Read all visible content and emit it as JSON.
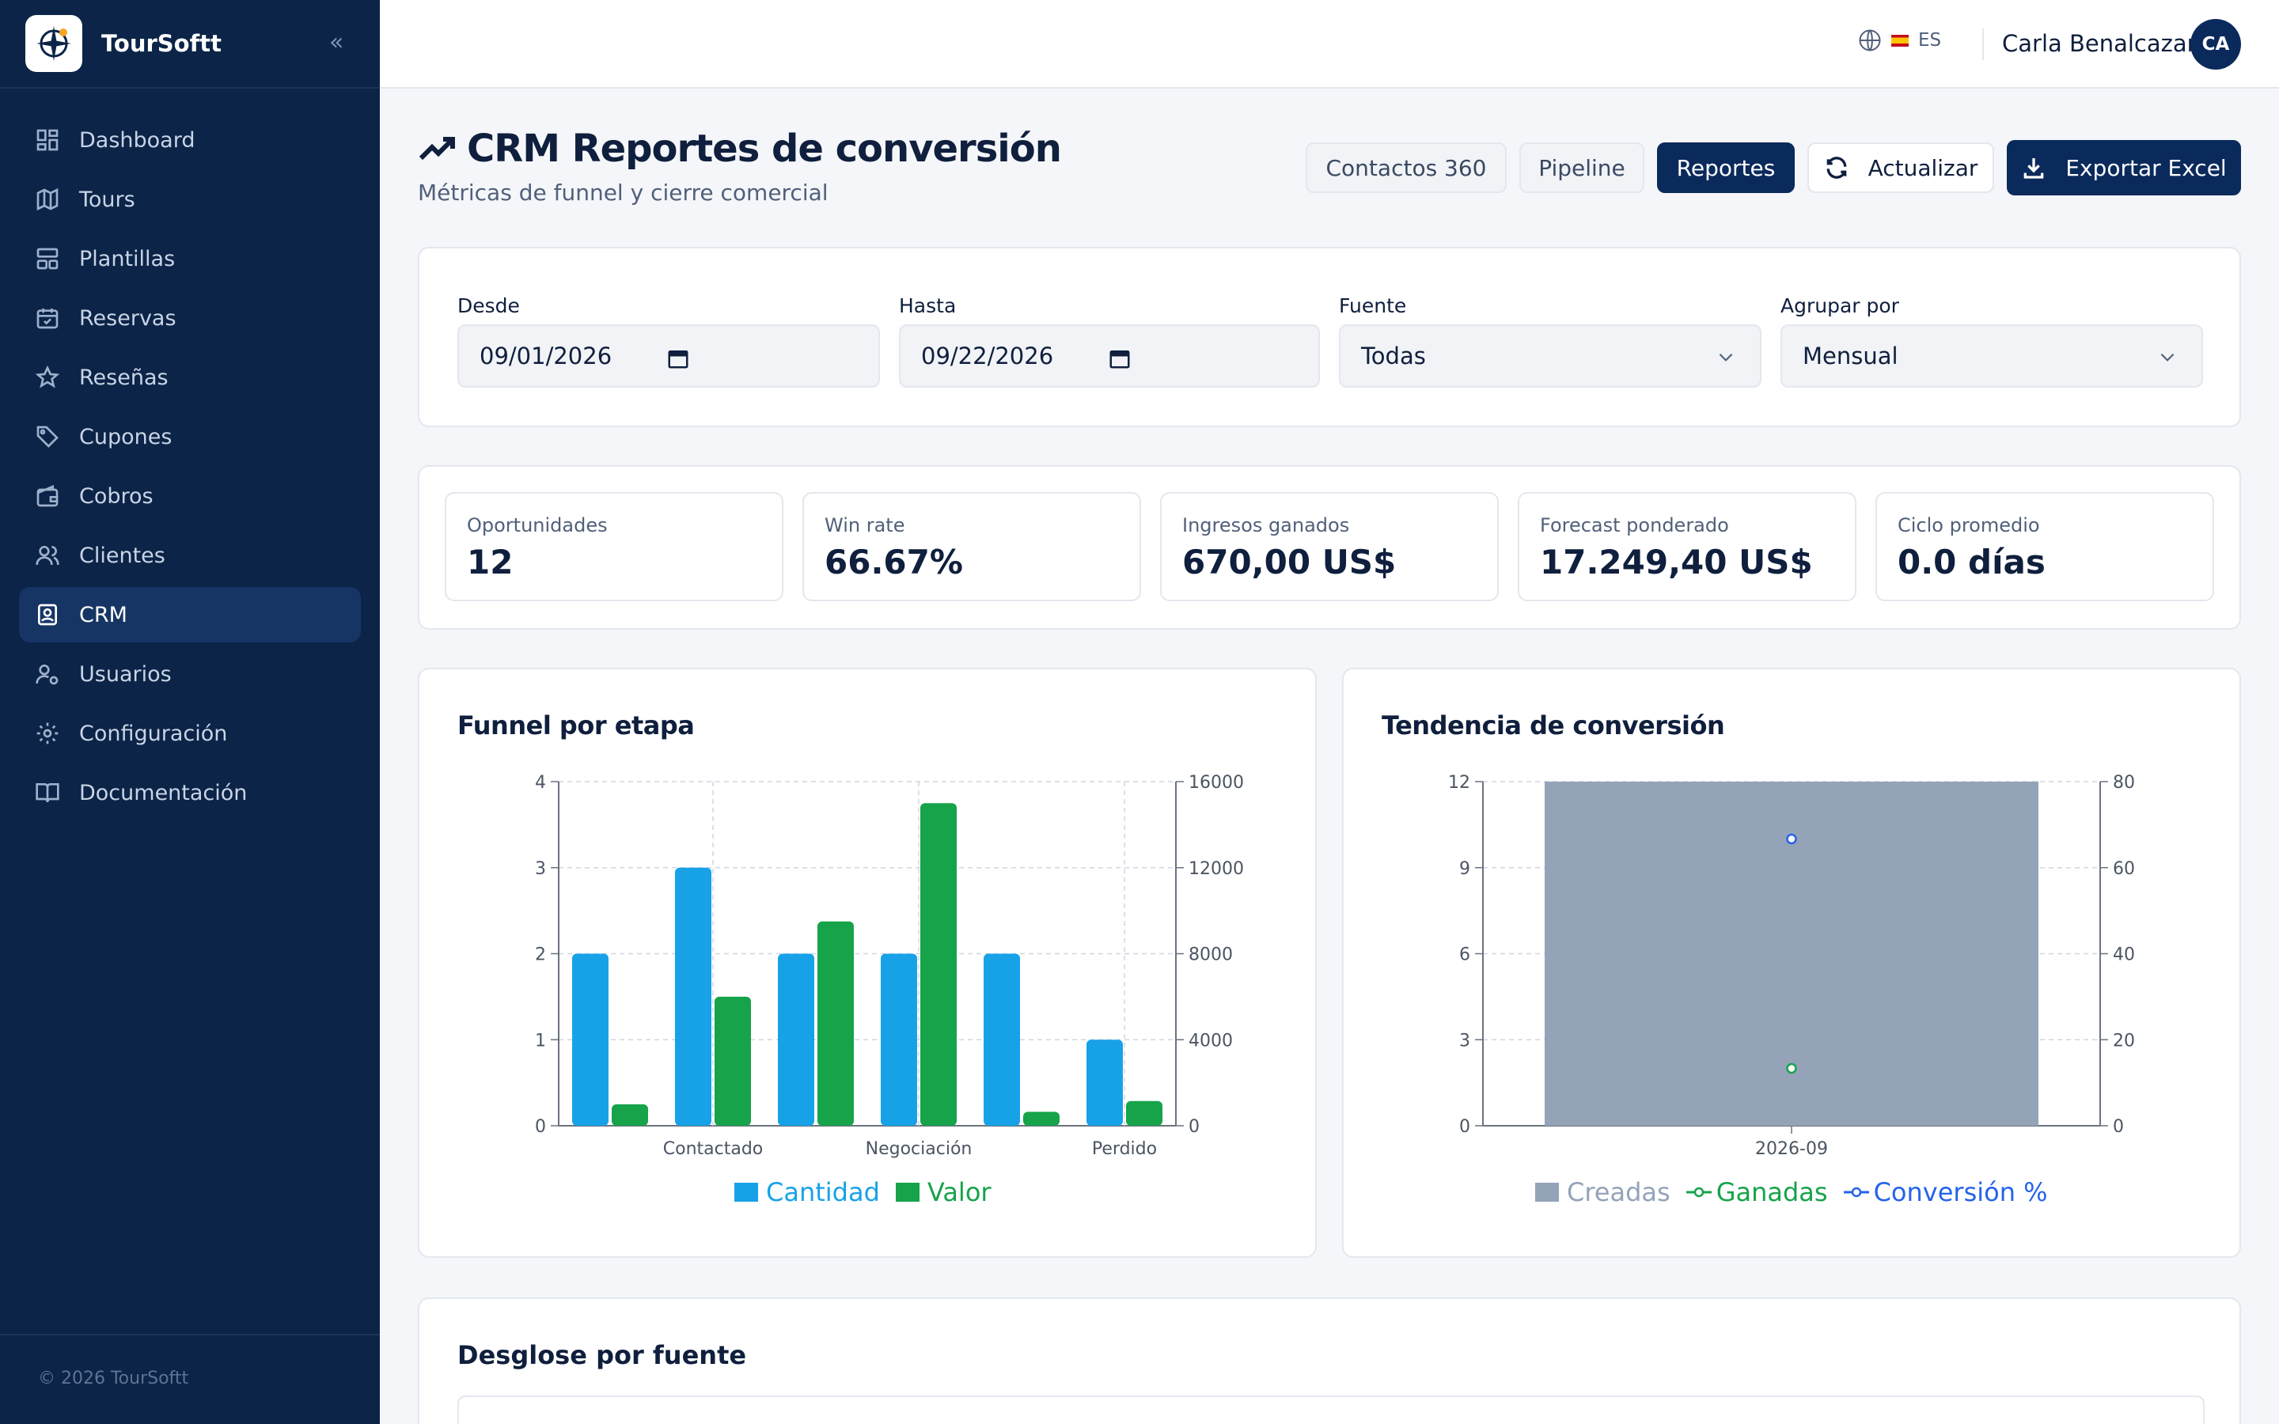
{
  "brand": {
    "name": "TourSoftt"
  },
  "sidebar": {
    "items": [
      {
        "label": "Dashboard",
        "icon": "dashboard-icon"
      },
      {
        "label": "Tours",
        "icon": "map-icon"
      },
      {
        "label": "Plantillas",
        "icon": "template-icon"
      },
      {
        "label": "Reservas",
        "icon": "calendar-icon"
      },
      {
        "label": "Reseñas",
        "icon": "star-icon"
      },
      {
        "label": "Cupones",
        "icon": "tag-icon"
      },
      {
        "label": "Cobros",
        "icon": "wallet-icon"
      },
      {
        "label": "Clientes",
        "icon": "users-icon"
      },
      {
        "label": "CRM",
        "icon": "contact-icon",
        "active": true
      },
      {
        "label": "Usuarios",
        "icon": "user-gear-icon"
      },
      {
        "label": "Configuración",
        "icon": "gear-icon"
      },
      {
        "label": "Documentación",
        "icon": "book-icon"
      }
    ],
    "footer": "© 2026 TourSoftt"
  },
  "topbar": {
    "language": "ES",
    "user_name": "Carla Benalcazar",
    "user_initials": "CA"
  },
  "header": {
    "title": "CRM Reportes de conversión",
    "subtitle": "Métricas de funnel y cierre comercial",
    "tabs": [
      "Contactos 360",
      "Pipeline",
      "Reportes"
    ],
    "active_tab": "Reportes",
    "refresh_label": "Actualizar",
    "export_label": "Exportar Excel"
  },
  "filters": {
    "from": {
      "label": "Desde",
      "value": "09/01/2026"
    },
    "to": {
      "label": "Hasta",
      "value": "09/22/2026"
    },
    "source": {
      "label": "Fuente",
      "value": "Todas"
    },
    "group_by": {
      "label": "Agrupar por",
      "value": "Mensual"
    }
  },
  "kpis": [
    {
      "label": "Oportunidades",
      "value": "12"
    },
    {
      "label": "Win rate",
      "value": "66.67%"
    },
    {
      "label": "Ingresos ganados",
      "value": "670,00 US$"
    },
    {
      "label": "Forecast ponderado",
      "value": "17.249,40 US$"
    },
    {
      "label": "Ciclo promedio",
      "value": "0.0 días"
    }
  ],
  "funnel": {
    "title": "Funnel por etapa",
    "legend": [
      "Cantidad",
      "Valor"
    ]
  },
  "trend": {
    "title": "Tendencia de conversión",
    "legend": [
      "Creadas",
      "Ganadas",
      "Conversión %"
    ]
  },
  "breakdown": {
    "title": "Desglose por fuente"
  },
  "colors": {
    "sidebar": "#0b2447",
    "primary": "#0b2a5c",
    "blue": "#17a2e8",
    "green": "#16a34a",
    "gray": "#94a3b8",
    "conv": "#2563eb"
  },
  "chart_data": [
    {
      "type": "bar",
      "title": "Funnel por etapa",
      "categories": [
        "",
        "Contactado",
        "",
        "Negociación",
        "",
        "Perdido"
      ],
      "series": [
        {
          "name": "Cantidad",
          "axis": "left",
          "values": [
            2,
            3,
            2,
            2,
            2,
            1
          ]
        },
        {
          "name": "Valor",
          "axis": "right",
          "values": [
            1000,
            6000,
            9500,
            15000,
            650,
            1150
          ]
        }
      ],
      "ylim_left": [
        0,
        4
      ],
      "yticks_left": [
        0,
        1,
        2,
        3,
        4
      ],
      "ylim_right": [
        0,
        16000
      ],
      "yticks_right": [
        0,
        4000,
        8000,
        12000,
        16000
      ],
      "grid": true,
      "legend": "bottom"
    },
    {
      "type": "bar",
      "title": "Tendencia de conversión",
      "categories": [
        "2026-09"
      ],
      "series": [
        {
          "name": "Creadas",
          "kind": "bar",
          "axis": "left",
          "values": [
            12
          ]
        },
        {
          "name": "Ganadas",
          "kind": "line",
          "axis": "left",
          "values": [
            2
          ]
        },
        {
          "name": "Conversión %",
          "kind": "line",
          "axis": "right",
          "values": [
            66.67
          ]
        }
      ],
      "ylim_left": [
        0,
        12
      ],
      "yticks_left": [
        0,
        3,
        6,
        9,
        12
      ],
      "ylim_right": [
        0,
        80
      ],
      "yticks_right": [
        0,
        20,
        40,
        60,
        80
      ],
      "grid": true,
      "legend": "bottom"
    }
  ]
}
